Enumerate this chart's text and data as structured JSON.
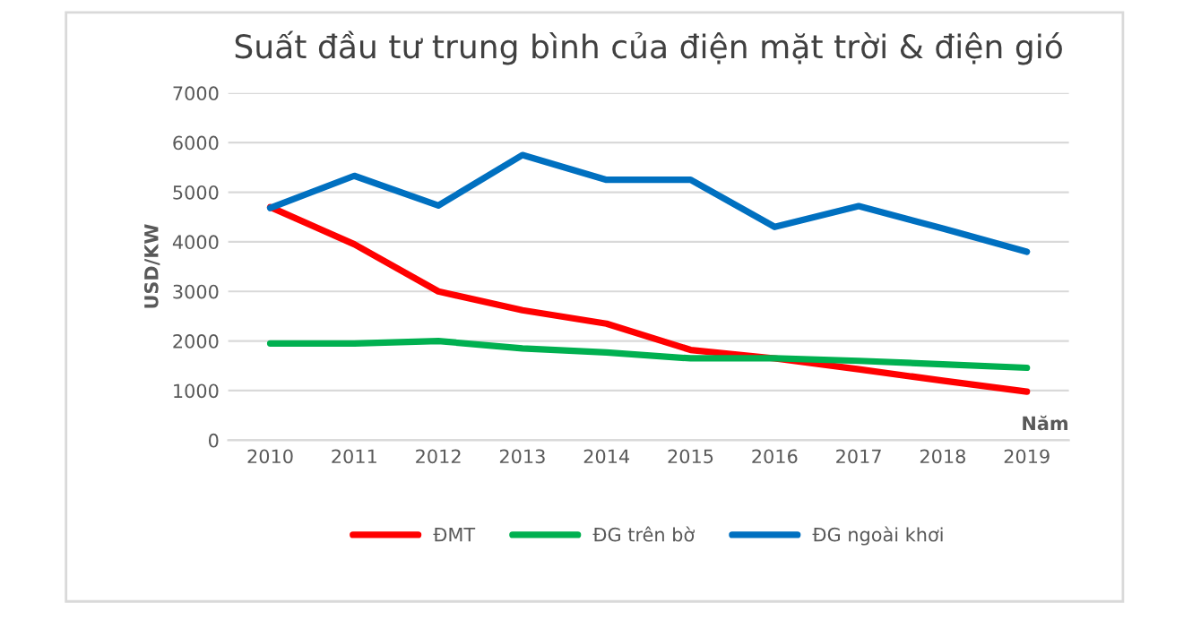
{
  "chart_data": {
    "type": "line",
    "title": "Suất đầu tư trung bình của điện mặt trời & điện gió",
    "xlabel": "Năm",
    "ylabel": "USD/KW",
    "categories": [
      "2010",
      "2011",
      "2012",
      "2013",
      "2014",
      "2015",
      "2016",
      "2017",
      "2018",
      "2019"
    ],
    "series": [
      {
        "name": "ĐMT",
        "color": "#ff0000",
        "values": [
          4700,
          3950,
          3000,
          2620,
          2350,
          1820,
          1650,
          1430,
          1200,
          980
        ]
      },
      {
        "name": "ĐG trên bờ",
        "color": "#00b050",
        "values": [
          1950,
          1950,
          2000,
          1850,
          1770,
          1650,
          1650,
          1600,
          1530,
          1460
        ]
      },
      {
        "name": "ĐG ngoài khơi",
        "color": "#0070c0",
        "values": [
          4680,
          5330,
          4730,
          5750,
          5250,
          5250,
          4300,
          4720,
          4270,
          3800
        ]
      }
    ],
    "ylim": [
      0,
      7000
    ],
    "yticks": [
      0,
      1000,
      2000,
      3000,
      4000,
      5000,
      6000,
      7000
    ],
    "grid": "y",
    "legend": "bottom",
    "marker": "none",
    "line_style": "solid"
  }
}
